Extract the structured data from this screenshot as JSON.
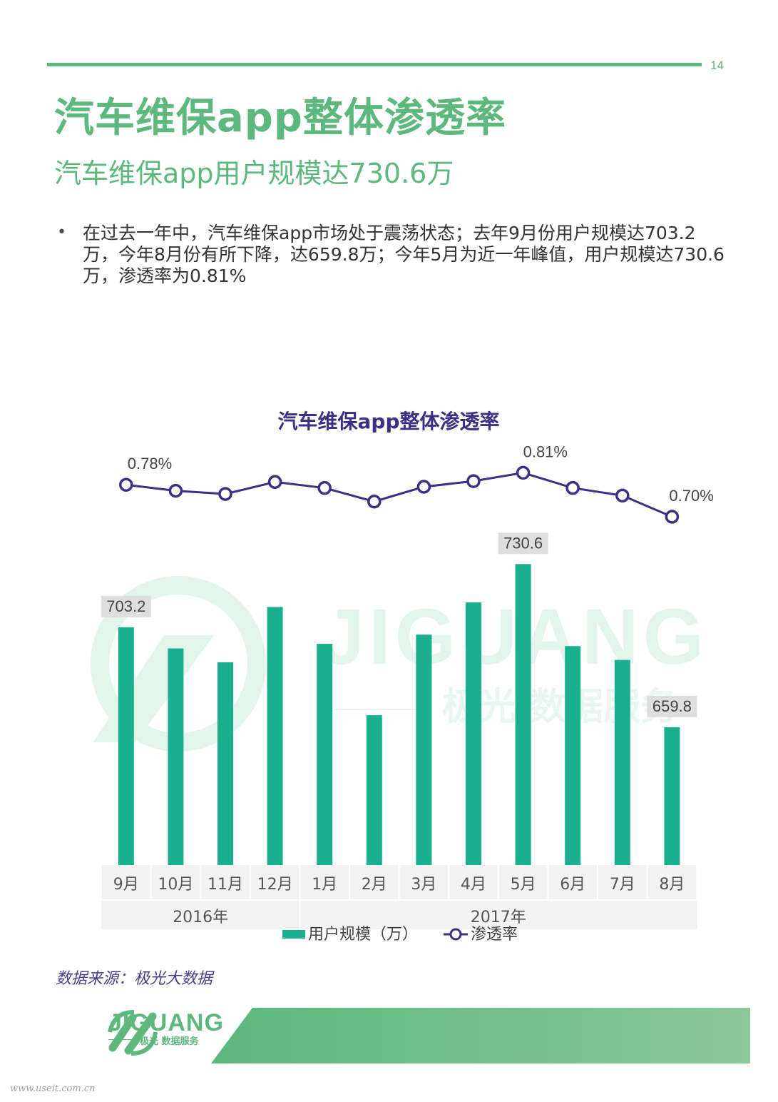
{
  "header": {
    "page_number": "14"
  },
  "title": "汽车维保app整体渗透率",
  "subtitle": "汽车维保app用户规模达730.6万",
  "bullet_symbol": "•",
  "body_text": "在过去一年中，汽车维保app市场处于震荡状态；去年9月份用户规模达703.2万，今年8月份有所下降，达659.8万；今年5月为近一年峰值，用户规模达730.6万，渗透率为0.81%",
  "chart_data": {
    "type": "bar+line",
    "title": "汽车维保app整体渗透率",
    "categories": [
      "9月",
      "10月",
      "11月",
      "12月",
      "1月",
      "2月",
      "3月",
      "4月",
      "5月",
      "6月",
      "7月",
      "8月"
    ],
    "year_groups": [
      {
        "label": "2016年",
        "span": 4
      },
      {
        "label": "2017年",
        "span": 8
      }
    ],
    "series": [
      {
        "name": "用户规模（万）",
        "type": "bar",
        "color": "#1aaf8e",
        "values": [
          703.2,
          694,
          688,
          712,
          696,
          665,
          700,
          714,
          730.6,
          695,
          689,
          659.8
        ],
        "shown_labels": {
          "0": "703.2",
          "8": "730.6",
          "11": "659.8"
        }
      },
      {
        "name": "渗透率",
        "type": "line",
        "color": "#3d2f86",
        "values": [
          0.78,
          0.765,
          0.757,
          0.787,
          0.772,
          0.738,
          0.775,
          0.789,
          0.81,
          0.772,
          0.753,
          0.7
        ],
        "shown_labels": {
          "0": "0.78%",
          "8": "0.81%",
          "11": "0.70%"
        }
      }
    ],
    "legend_position": "bottom"
  },
  "watermark": {
    "main": "JIGUANG",
    "sub": "极光 数据服务"
  },
  "source": "数据来源：极光大数据",
  "footer": {
    "logo_text": "JIGUANG",
    "logo_sub": "极光 数据服务",
    "site": "www.useit.com.cn"
  },
  "colors": {
    "brand_green": "#5cb87d",
    "bar": "#1aaf8e",
    "line": "#3d2f86"
  }
}
